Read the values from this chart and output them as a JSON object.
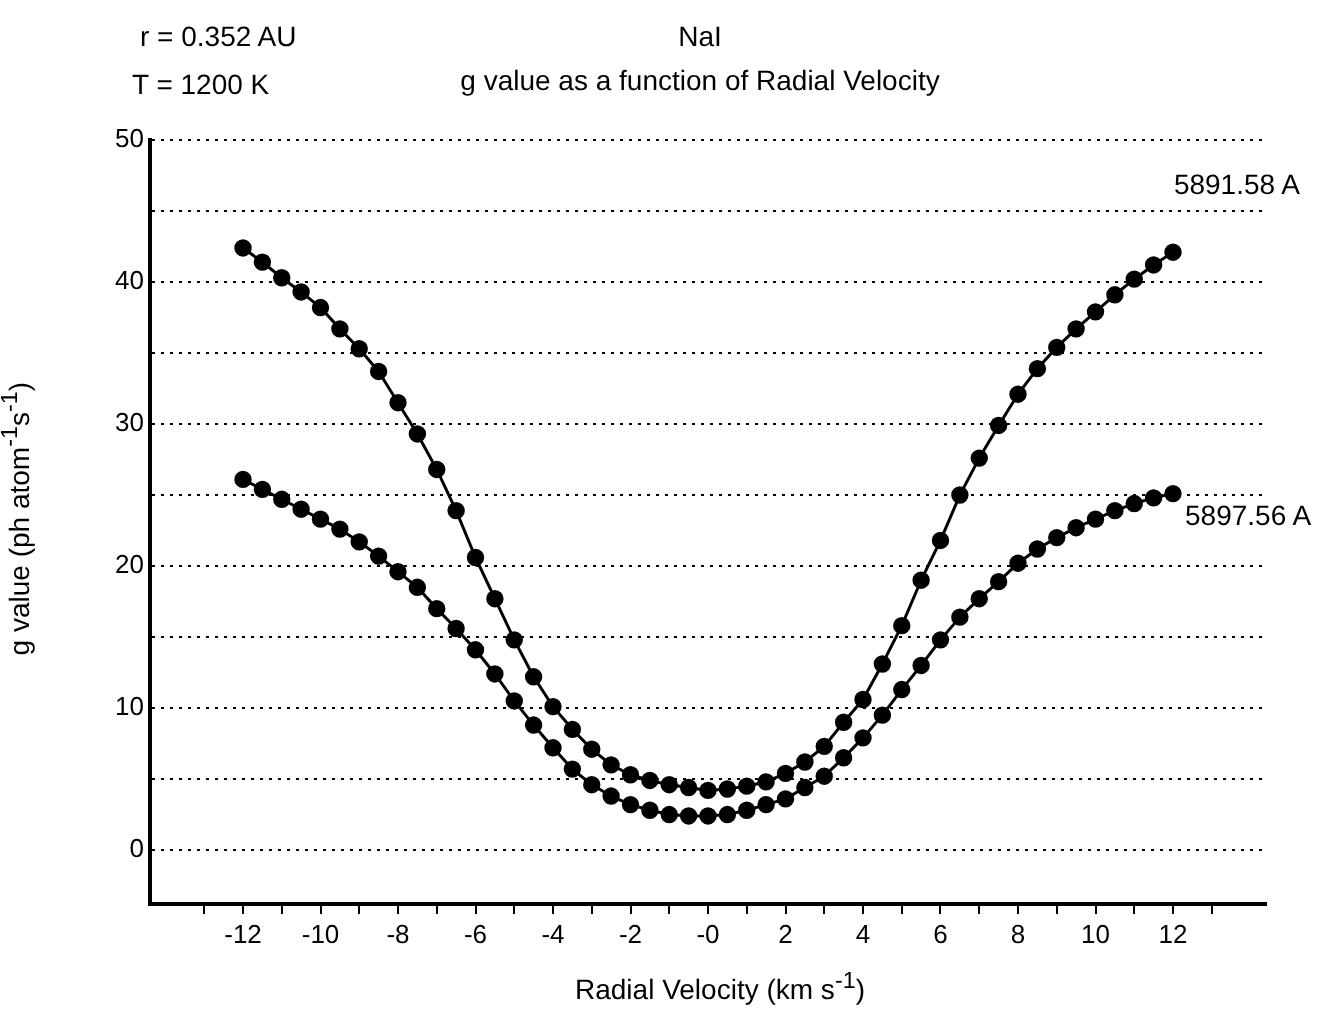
{
  "chart_data": {
    "type": "line",
    "title": "NaI",
    "subtitle": "g value as a function of Radial Velocity",
    "xlabel": "Radial Velocity (km s$^{-1}$)",
    "ylabel": "g value (ph atom$^{-1}$s$^{-1}$)",
    "annotations": [
      "r = 0.352 AU",
      "T = 1200 K"
    ],
    "x": [
      -12,
      -11.5,
      -11,
      -10.5,
      -10,
      -9.5,
      -9,
      -8.5,
      -8,
      -7.5,
      -7,
      -6.5,
      -6,
      -5.5,
      -5,
      -4.5,
      -4,
      -3.5,
      -3,
      -2.5,
      -2,
      -1.5,
      -1,
      -0.5,
      0,
      0.5,
      1,
      1.5,
      2,
      2.5,
      3,
      3.5,
      4,
      4.5,
      5,
      5.5,
      6,
      6.5,
      7,
      7.5,
      8,
      8.5,
      9,
      9.5,
      10,
      10.5,
      11,
      11.5,
      12
    ],
    "series": [
      {
        "name": "5891.58 A",
        "color": "#000000",
        "values": [
          42.4,
          41.4,
          40.3,
          39.3,
          38.2,
          36.7,
          35.3,
          33.7,
          31.5,
          29.3,
          26.8,
          23.9,
          20.6,
          17.7,
          14.8,
          12.2,
          10.1,
          8.5,
          7.1,
          6.0,
          5.3,
          4.9,
          4.6,
          4.4,
          4.2,
          4.3,
          4.5,
          4.8,
          5.4,
          6.2,
          7.3,
          9.0,
          10.6,
          13.1,
          15.8,
          19.0,
          21.8,
          25.0,
          27.6,
          29.9,
          32.1,
          33.9,
          35.4,
          36.7,
          37.9,
          39.1,
          40.2,
          41.2,
          42.1
        ]
      },
      {
        "name": "5897.56 A",
        "color": "#000000",
        "values": [
          26.1,
          25.4,
          24.7,
          24.0,
          23.3,
          22.6,
          21.7,
          20.7,
          19.6,
          18.5,
          17.0,
          15.6,
          14.1,
          12.4,
          10.5,
          8.8,
          7.2,
          5.7,
          4.6,
          3.8,
          3.2,
          2.8,
          2.5,
          2.4,
          2.4,
          2.5,
          2.8,
          3.2,
          3.6,
          4.4,
          5.2,
          6.5,
          7.9,
          9.5,
          11.3,
          13.0,
          14.8,
          16.4,
          17.7,
          18.9,
          20.2,
          21.2,
          22.0,
          22.7,
          23.3,
          23.9,
          24.4,
          24.8,
          25.1
        ]
      }
    ],
    "xlim": [
      -14.4,
      14.4
    ],
    "xticks": [
      {
        "value": -13,
        "label": null
      },
      -12,
      {
        "value": -11,
        "label": null
      },
      -10,
      {
        "value": -9,
        "label": null
      },
      -8,
      {
        "value": -7,
        "label": null
      },
      -6,
      {
        "value": -5,
        "label": null
      },
      -4,
      {
        "value": -3,
        "label": null
      },
      -2,
      {
        "value": -1,
        "label": null
      },
      {
        "value": 0,
        "label": "-0"
      },
      {
        "value": 1,
        "label": null
      },
      2,
      {
        "value": 3,
        "label": null
      },
      4,
      {
        "value": 5,
        "label": null
      },
      6,
      {
        "value": 7,
        "label": null
      },
      8,
      {
        "value": 9,
        "label": null
      },
      10,
      {
        "value": 11,
        "label": null
      },
      12,
      {
        "value": 13,
        "label": null
      }
    ],
    "ylim": [
      -3.8,
      50
    ],
    "yticks": [
      0,
      {
        "value": 5,
        "label": null
      },
      10,
      {
        "value": 15,
        "label": null
      },
      20,
      {
        "value": 25,
        "label": null
      },
      30,
      {
        "value": 35,
        "label": null
      },
      40,
      {
        "value": 45,
        "label": null
      },
      50
    ],
    "grid": "y",
    "legend": false,
    "marker": "circle",
    "line_style": "solid"
  }
}
